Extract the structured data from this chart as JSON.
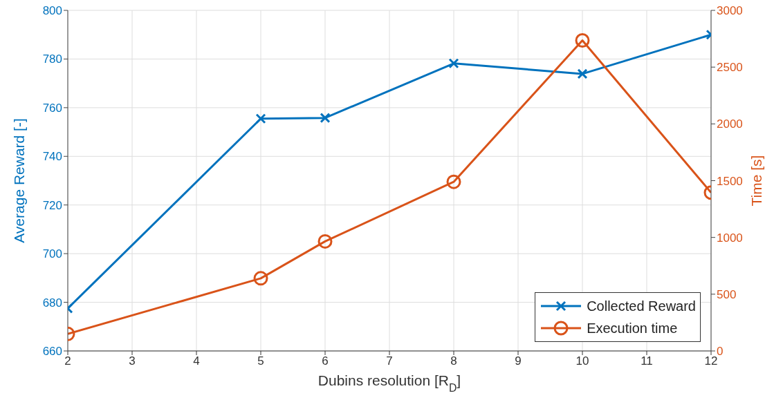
{
  "chart_data": {
    "type": "line",
    "xlabel": "Dubins resolution [R$_{D}$]",
    "ylabel": "Average Reward [-]",
    "y2label": "Time [s]",
    "x": [
      2,
      5,
      6,
      8,
      10,
      12
    ],
    "series": [
      {
        "name": "Collected Reward",
        "color": "#0072bd",
        "marker": "cross",
        "values": [
          677.5,
          755.5,
          755.8,
          778.2,
          773.9,
          790
        ]
      },
      {
        "name": "Execution time",
        "color": "#d95319",
        "marker": "circle",
        "axis": "y2",
        "values": [
          150,
          640,
          965,
          1490,
          2735,
          1395
        ]
      }
    ],
    "xlim": [
      2,
      12
    ],
    "xticks": [
      2,
      3,
      4,
      5,
      6,
      7,
      8,
      9,
      10,
      11,
      12
    ],
    "ylim": [
      660,
      800
    ],
    "yticks": [
      660,
      680,
      700,
      720,
      740,
      760,
      780,
      800
    ],
    "y2lim": [
      0,
      3000
    ],
    "y2ticks": [
      0,
      500,
      1000,
      1500,
      2000,
      2500,
      3000
    ],
    "grid": true,
    "legend": "bottom right",
    "line_style": "solid"
  }
}
